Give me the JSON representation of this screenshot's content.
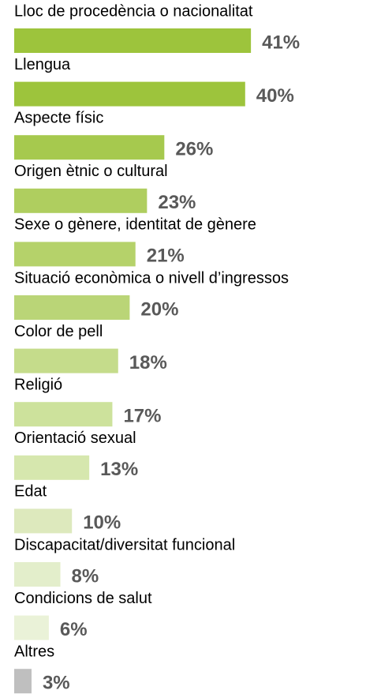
{
  "chart_data": {
    "type": "bar",
    "orientation": "horizontal",
    "categories": [
      "Lloc de procedència o nacionalitat",
      "Llengua",
      "Aspecte físic",
      "Origen ètnic o cultural",
      "Sexe o gènere, identitat de gènere",
      "Situació econòmica o nivell d’ingressos",
      "Color de pell",
      "Religió",
      "Orientació sexual",
      "Edat",
      "Discapacitat/diversitat funcional",
      "Condicions de salut",
      "Altres"
    ],
    "values": [
      41,
      40,
      26,
      23,
      21,
      20,
      18,
      17,
      13,
      10,
      8,
      6,
      3
    ],
    "value_labels": [
      "41%",
      "40%",
      "26%",
      "23%",
      "21%",
      "20%",
      "18%",
      "17%",
      "13%",
      "10%",
      "8%",
      "6%",
      "3%"
    ],
    "colors": [
      "#9dc43c",
      "#9dc43c",
      "#a6c94e",
      "#afce5f",
      "#b5d26a",
      "#bad577",
      "#c5dc8b",
      "#cde29c",
      "#d6e7ae",
      "#dde9bd",
      "#e3eecb",
      "#eaf2d8",
      "#bfbfbf"
    ]
  }
}
